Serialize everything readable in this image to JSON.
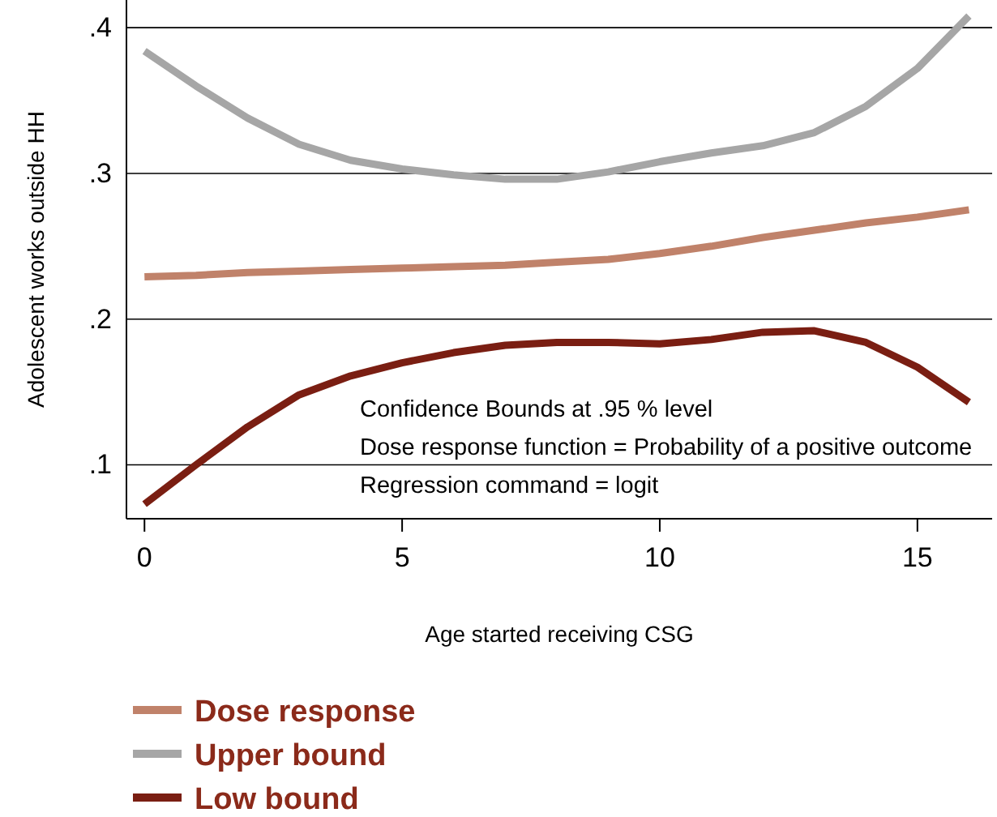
{
  "chart_data": {
    "type": "line",
    "xlabel": "Age started receiving CSG",
    "ylabel": "Adolescent works outside HH",
    "x": [
      0,
      1,
      2,
      3,
      4,
      5,
      6,
      7,
      8,
      9,
      10,
      11,
      12,
      13,
      14,
      15,
      16
    ],
    "series": [
      {
        "name": "Dose response",
        "color": "#c0826a",
        "values": [
          0.229,
          0.23,
          0.232,
          0.233,
          0.234,
          0.235,
          0.236,
          0.237,
          0.239,
          0.241,
          0.245,
          0.25,
          0.256,
          0.261,
          0.266,
          0.27,
          0.275
        ]
      },
      {
        "name": "Upper bound",
        "color": "#a6a6a6",
        "values": [
          0.384,
          0.36,
          0.338,
          0.32,
          0.309,
          0.303,
          0.299,
          0.296,
          0.296,
          0.301,
          0.308,
          0.314,
          0.319,
          0.328,
          0.346,
          0.372,
          0.408
        ]
      },
      {
        "name": "Low bound",
        "color": "#7a1e12",
        "values": [
          0.073,
          0.1,
          0.126,
          0.148,
          0.161,
          0.17,
          0.177,
          0.182,
          0.184,
          0.184,
          0.183,
          0.186,
          0.191,
          0.192,
          0.184,
          0.167,
          0.143
        ]
      }
    ],
    "xlim": [
      -0.35,
      16.45
    ],
    "ylim": [
      0.063,
      0.419
    ],
    "xticks": [
      0,
      5,
      10,
      15
    ],
    "yticks": [
      {
        "value": 0.1,
        "label": ".1"
      },
      {
        "value": 0.2,
        "label": ".2"
      },
      {
        "value": 0.3,
        "label": ".3"
      },
      {
        "value": 0.4,
        "label": ".4"
      }
    ],
    "grid": "y",
    "legend": "bottom",
    "marker": "none",
    "line_style": "solid",
    "annotations": [
      "Confidence Bounds at .95 % level",
      "Dose response function = Probability of a positive outcome",
      "Regression command = logit"
    ]
  }
}
